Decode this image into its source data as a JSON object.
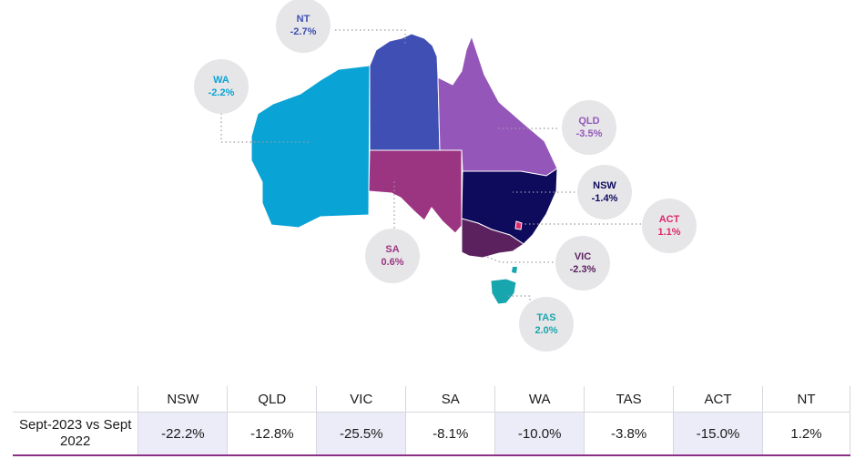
{
  "regions": [
    {
      "id": "wa",
      "name": "WA",
      "change": "-2.2%",
      "color": "#0aa3d6",
      "label_color": "#0aa3d6"
    },
    {
      "id": "nt",
      "name": "NT",
      "change": "-2.7%",
      "color": "#3f4fb3",
      "label_color": "#3f4fb3"
    },
    {
      "id": "sa",
      "name": "SA",
      "change": "0.6%",
      "color": "#9c3581",
      "label_color": "#9c3581"
    },
    {
      "id": "qld",
      "name": "QLD",
      "change": "-3.5%",
      "color": "#9457b9",
      "label_color": "#9457b9"
    },
    {
      "id": "nsw",
      "name": "NSW",
      "change": "-1.4%",
      "color": "#0e0a5c",
      "label_color": "#0e0a5c"
    },
    {
      "id": "act",
      "name": "ACT",
      "change": "1.1%",
      "color": "#e0286a",
      "label_color": "#e0286a"
    },
    {
      "id": "vic",
      "name": "VIC",
      "change": "-2.3%",
      "color": "#5b215e",
      "label_color": "#5b215e"
    },
    {
      "id": "tas",
      "name": "TAS",
      "change": "2.0%",
      "color": "#17a6ad",
      "label_color": "#17a6ad"
    }
  ],
  "table": {
    "row_label": "Sept-2023 vs Sept 2022",
    "columns": [
      "NSW",
      "QLD",
      "VIC",
      "SA",
      "WA",
      "TAS",
      "ACT",
      "NT"
    ],
    "values": [
      "-22.2%",
      "-12.8%",
      "-25.5%",
      "-8.1%",
      "-10.0%",
      "-3.8%",
      "-15.0%",
      "1.2%"
    ]
  }
}
